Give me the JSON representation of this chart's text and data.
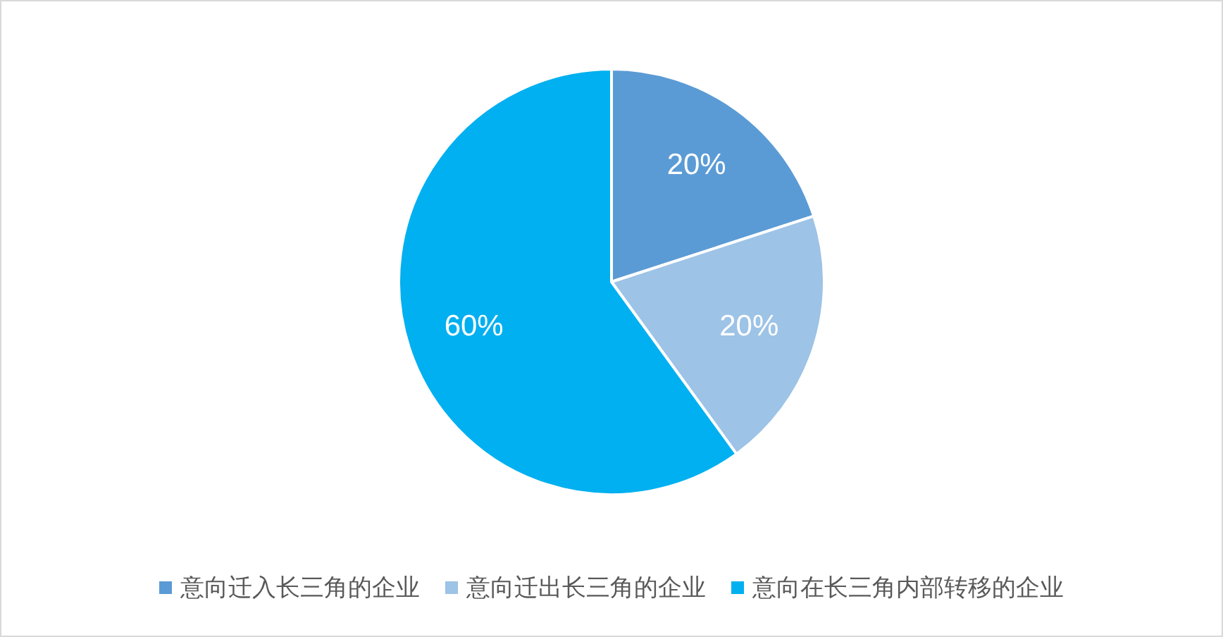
{
  "chart_data": {
    "type": "pie",
    "categories": [
      "意向迁入长三角的企业",
      "意向迁出长三角的企业",
      "意向在长三角内部转移的企业"
    ],
    "values": [
      20,
      20,
      60
    ],
    "colors": [
      "#5b9bd5",
      "#9dc3e6",
      "#00b0f0"
    ],
    "value_labels": [
      "20%",
      "20%",
      "60%"
    ],
    "legend": "bottom"
  }
}
